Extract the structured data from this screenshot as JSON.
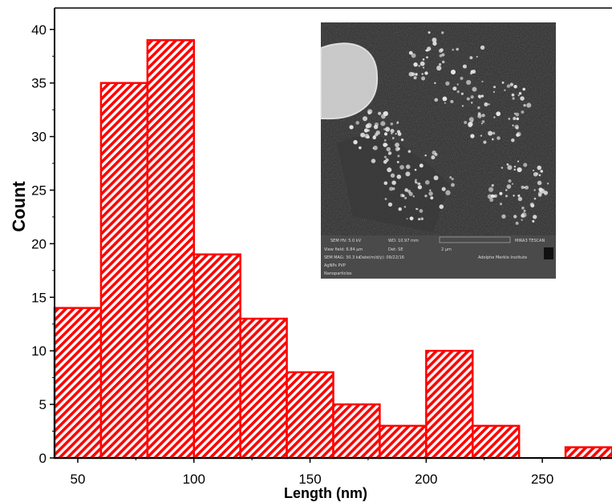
{
  "chart_data": {
    "type": "bar",
    "xlabel": "Length (nm)",
    "ylabel": "Count",
    "xlim": [
      40,
      280
    ],
    "ylim": [
      0,
      42
    ],
    "x_ticks": [
      50,
      100,
      150,
      200,
      250
    ],
    "y_ticks": [
      0,
      5,
      10,
      15,
      20,
      25,
      30,
      35,
      40
    ],
    "bin_width": 20,
    "bins": [
      {
        "start": 40,
        "end": 60,
        "count": 14
      },
      {
        "start": 60,
        "end": 80,
        "count": 35
      },
      {
        "start": 80,
        "end": 100,
        "count": 39
      },
      {
        "start": 100,
        "end": 120,
        "count": 19
      },
      {
        "start": 120,
        "end": 140,
        "count": 13
      },
      {
        "start": 140,
        "end": 160,
        "count": 8
      },
      {
        "start": 160,
        "end": 180,
        "count": 5
      },
      {
        "start": 180,
        "end": 200,
        "count": 3
      },
      {
        "start": 200,
        "end": 220,
        "count": 10
      },
      {
        "start": 220,
        "end": 240,
        "count": 3
      },
      {
        "start": 240,
        "end": 260,
        "count": 0
      },
      {
        "start": 260,
        "end": 280,
        "count": 1
      }
    ],
    "bar_color": "#ff0000",
    "fill_pattern": "diagonal-hatch",
    "grid": false,
    "inset": {
      "kind": "SEM micrograph",
      "info_lines": [
        [
          "SEM HV: 5.0 kV",
          "WD: 10.97 mm",
          "MIRA3 TESCAN"
        ],
        [
          "View field: 6.84 µm",
          "Det: SE",
          "2 µm"
        ],
        [
          "SEM MAG: 30.3 kx",
          "Date(m/d/y): 09/22/16",
          "Adolphe Merkle Institute"
        ],
        [
          "AgNPs PVP"
        ],
        [
          "Nanoparticles"
        ]
      ]
    }
  }
}
